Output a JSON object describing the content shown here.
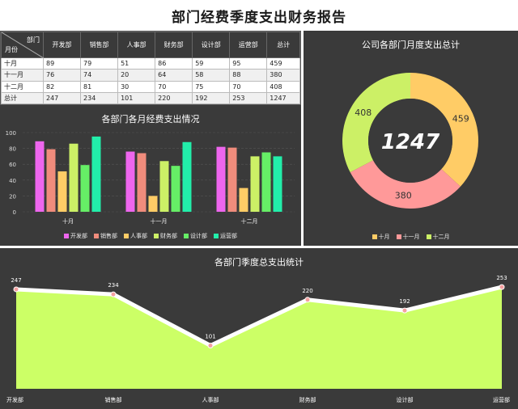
{
  "title": "部门经费季度支出财务报告",
  "table": {
    "corner_top": "部门",
    "corner_bottom": "月份",
    "headers": [
      "开发部",
      "销售部",
      "人事部",
      "财务部",
      "设计部",
      "运营部",
      "总计"
    ],
    "rows": [
      {
        "label": "十月",
        "values": [
          "89",
          "79",
          "51",
          "86",
          "59",
          "95",
          "459"
        ]
      },
      {
        "label": "十一月",
        "values": [
          "76",
          "74",
          "20",
          "64",
          "58",
          "88",
          "380"
        ]
      },
      {
        "label": "十二月",
        "values": [
          "82",
          "81",
          "30",
          "70",
          "75",
          "70",
          "408"
        ]
      },
      {
        "label": "总计",
        "values": [
          "247",
          "234",
          "101",
          "220",
          "192",
          "253",
          "1247"
        ]
      }
    ]
  },
  "bar_chart_title": "各部门各月经费支出情况",
  "pie_chart_title": "公司各部门月度支出总计",
  "area_chart_title": "各部门季度总支出统计",
  "pie_center": "1247",
  "colors": {
    "dept": [
      "#ee66ee",
      "#f08c7c",
      "#ffcc66",
      "#ccf066",
      "#66ee66",
      "#22eeaa"
    ],
    "months": [
      "#ffcc66",
      "#ff9999",
      "#ccf066"
    ],
    "area_fill": "#ccff66",
    "panel": "#3a3a3a"
  },
  "chart_data": [
    {
      "type": "bar",
      "title": "各部门各月经费支出情况",
      "categories": [
        "十月",
        "十一月",
        "十二月"
      ],
      "series": [
        {
          "name": "开发部",
          "values": [
            89,
            76,
            82
          ]
        },
        {
          "name": "销售部",
          "values": [
            79,
            74,
            81
          ]
        },
        {
          "name": "人事部",
          "values": [
            51,
            20,
            30
          ]
        },
        {
          "name": "财务部",
          "values": [
            86,
            64,
            70
          ]
        },
        {
          "name": "设计部",
          "values": [
            59,
            58,
            75
          ]
        },
        {
          "name": "运营部",
          "values": [
            95,
            88,
            70
          ]
        }
      ],
      "yticks": [
        0,
        20,
        40,
        60,
        80,
        100
      ],
      "ylim": [
        0,
        100
      ],
      "legend": "bottom",
      "grid": true
    },
    {
      "type": "pie",
      "title": "公司各部门月度支出总计",
      "labels": [
        "十月",
        "十一月",
        "十二月"
      ],
      "values": [
        459,
        380,
        408
      ],
      "total": 1247,
      "legend": "bottom"
    },
    {
      "type": "area",
      "title": "各部门季度总支出统计",
      "categories": [
        "开发部",
        "销售部",
        "人事部",
        "财务部",
        "设计部",
        "运营部"
      ],
      "values": [
        247,
        234,
        101,
        220,
        192,
        253
      ]
    }
  ]
}
